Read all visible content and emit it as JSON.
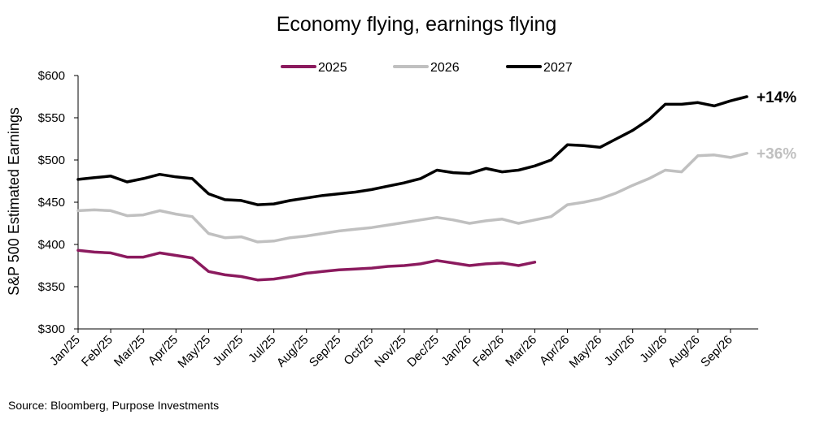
{
  "chart_data": {
    "type": "line",
    "title": "Economy flying, earnings flying",
    "ylabel": "S&P 500 Estimated Earnings",
    "xlabel": "",
    "ylim": [
      300,
      600
    ],
    "y_ticks": [
      "$300",
      "$350",
      "$400",
      "$450",
      "$500",
      "$550",
      "$600"
    ],
    "y_tick_values": [
      300,
      350,
      400,
      450,
      500,
      550,
      600
    ],
    "x_ticks": [
      "Jan/25",
      "Feb/25",
      "Mar/25",
      "Apr/25",
      "May/25",
      "Jun/25",
      "Jul/25",
      "Aug/25",
      "Sep/25",
      "Oct/25",
      "Nov/25",
      "Dec/25",
      "Jan/26",
      "Feb/26",
      "Mar/26",
      "Apr/26",
      "May/26",
      "Jun/26",
      "Jul/26",
      "Aug/26",
      "Sep/26"
    ],
    "grid": false,
    "legend_position": "top-center",
    "source": "Source: Bloomberg, Purpose Investments",
    "series": [
      {
        "name": "2025",
        "color": "#8B1A5E",
        "end_label": "",
        "x": [
          "Jan/25",
          "Jan/25+",
          "Feb/25",
          "Feb/25+",
          "Mar/25",
          "Mar/25+",
          "Apr/25",
          "Apr/25+",
          "May/25",
          "May/25+",
          "Jun/25",
          "Jun/25+",
          "Jul/25",
          "Jul/25+",
          "Aug/25",
          "Aug/25+",
          "Sep/25",
          "Sep/25+",
          "Oct/25",
          "Oct/25+",
          "Nov/25",
          "Nov/25+",
          "Dec/25",
          "Dec/25+",
          "Jan/26",
          "Jan/26+",
          "Feb/26",
          "Feb/26+",
          "Mar/26"
        ],
        "values": [
          393,
          391,
          390,
          385,
          385,
          390,
          387,
          384,
          368,
          364,
          362,
          358,
          359,
          362,
          366,
          368,
          370,
          371,
          372,
          374,
          375,
          377,
          381,
          378,
          375,
          377,
          378,
          375,
          379
        ]
      },
      {
        "name": "2026",
        "color": "#C0C0C0",
        "end_label": "+36%",
        "x": [
          "Jan/25",
          "Jan/25+",
          "Feb/25",
          "Feb/25+",
          "Mar/25",
          "Mar/25+",
          "Apr/25",
          "Apr/25+",
          "May/25",
          "May/25+",
          "Jun/25",
          "Jun/25+",
          "Jul/25",
          "Jul/25+",
          "Aug/25",
          "Aug/25+",
          "Sep/25",
          "Sep/25+",
          "Oct/25",
          "Oct/25+",
          "Nov/25",
          "Nov/25+",
          "Dec/25",
          "Dec/25+",
          "Jan/26",
          "Jan/26+",
          "Feb/26",
          "Feb/26+",
          "Mar/26",
          "Mar/26+",
          "Apr/26",
          "Apr/26+",
          "May/26",
          "May/26+",
          "Jun/26",
          "Jun/26+",
          "Jul/26",
          "Jul/26+",
          "Aug/26",
          "Aug/26+",
          "Sep/26",
          "Sep/26+"
        ],
        "values": [
          440,
          441,
          440,
          434,
          435,
          440,
          436,
          433,
          413,
          408,
          409,
          403,
          404,
          408,
          410,
          413,
          416,
          418,
          420,
          423,
          426,
          429,
          432,
          429,
          425,
          428,
          430,
          425,
          429,
          433,
          447,
          450,
          454,
          461,
          470,
          478,
          488,
          486,
          505,
          506,
          503,
          508
        ]
      },
      {
        "name": "2027",
        "color": "#000000",
        "end_label": "+14%",
        "x": [
          "Jan/25",
          "Jan/25+",
          "Feb/25",
          "Feb/25+",
          "Mar/25",
          "Mar/25+",
          "Apr/25",
          "Apr/25+",
          "May/25",
          "May/25+",
          "Jun/25",
          "Jun/25+",
          "Jul/25",
          "Jul/25+",
          "Aug/25",
          "Aug/25+",
          "Sep/25",
          "Sep/25+",
          "Oct/25",
          "Oct/25+",
          "Nov/25",
          "Nov/25+",
          "Dec/25",
          "Dec/25+",
          "Jan/26",
          "Jan/26+",
          "Feb/26",
          "Feb/26+",
          "Mar/26",
          "Mar/26+",
          "Apr/26",
          "Apr/26+",
          "May/26",
          "May/26+",
          "Jun/26",
          "Jun/26+",
          "Jul/26",
          "Jul/26+",
          "Aug/26",
          "Aug/26+",
          "Sep/26",
          "Sep/26+"
        ],
        "values": [
          477,
          479,
          481,
          474,
          478,
          483,
          480,
          478,
          460,
          453,
          452,
          447,
          448,
          452,
          455,
          458,
          460,
          462,
          465,
          469,
          473,
          478,
          488,
          485,
          484,
          490,
          486,
          488,
          493,
          500,
          518,
          517,
          515,
          525,
          535,
          548,
          566,
          566,
          568,
          564,
          570,
          575
        ]
      }
    ]
  }
}
